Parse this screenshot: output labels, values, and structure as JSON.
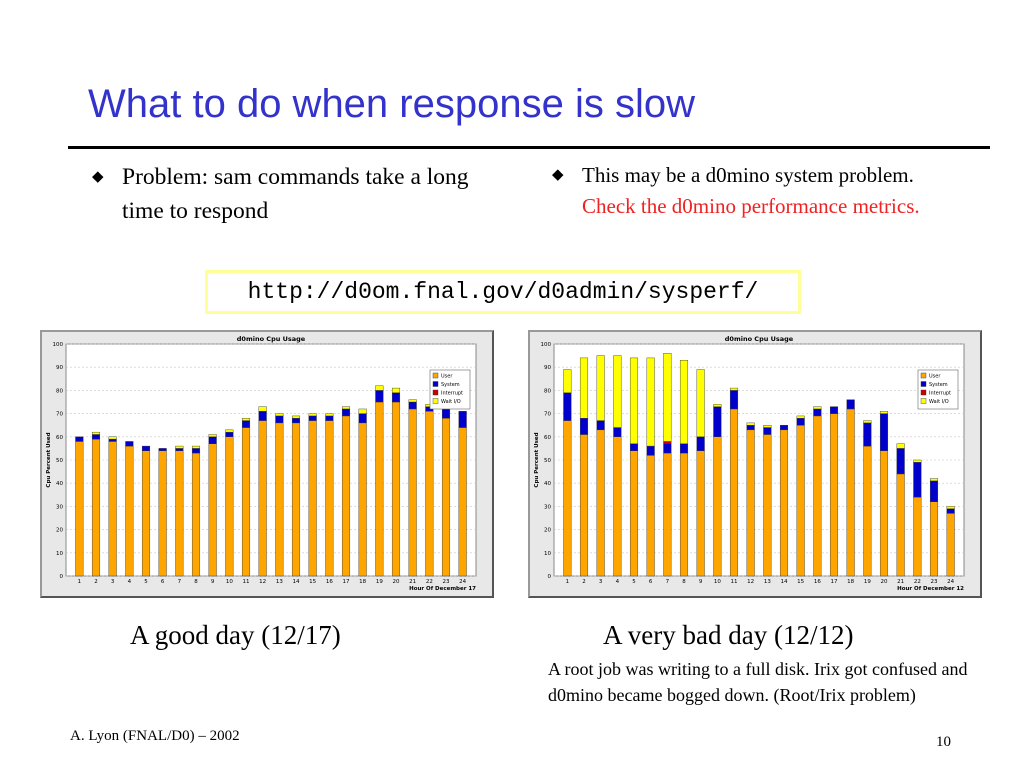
{
  "slide": {
    "title": "What to do when response is slow",
    "bullet_left": "Problem: sam commands take a long time to respond",
    "bullet_right_plain": "This may be a d0mino system problem. ",
    "bullet_right_red": "Check the d0mino performance metrics.",
    "url": "http://d0om.fnal.gov/d0admin/sysperf/",
    "caption_left": "A good day (12/17)",
    "caption_right": "A very bad day (12/12)",
    "note": "A root job was writing to a full disk. Irix got confused and d0mino became bogged down. (Root/Irix problem)",
    "footer_left": "A. Lyon (FNAL/D0) – 2002",
    "page_number": "10",
    "colors": {
      "title": "#3333cc",
      "red_text": "#ee2222",
      "url_box_border": "#ffff99"
    }
  },
  "chart_data": [
    {
      "type": "bar",
      "stacked": true,
      "title": "d0mino Cpu Usage",
      "xlabel": "Hour Of December 17",
      "ylabel": "Cpu Percent Used",
      "ylim": [
        0,
        100
      ],
      "yticks": [
        0,
        10,
        20,
        30,
        40,
        50,
        60,
        70,
        80,
        90,
        100
      ],
      "categories": [
        "1",
        "2",
        "3",
        "4",
        "5",
        "6",
        "7",
        "8",
        "9",
        "10",
        "11",
        "12",
        "13",
        "14",
        "15",
        "16",
        "17",
        "18",
        "19",
        "20",
        "21",
        "22",
        "23",
        "24"
      ],
      "series": [
        {
          "name": "User",
          "color": "#ffa500",
          "values": [
            58,
            59,
            58,
            56,
            54,
            54,
            54,
            53,
            57,
            60,
            64,
            67,
            66,
            66,
            67,
            67,
            69,
            66,
            75,
            75,
            72,
            71,
            68,
            64
          ]
        },
        {
          "name": "System",
          "color": "#0000cc",
          "values": [
            2,
            2,
            1,
            2,
            2,
            1,
            1,
            2,
            3,
            2,
            3,
            4,
            3,
            2,
            2,
            2,
            3,
            4,
            5,
            4,
            3,
            2,
            4,
            7
          ]
        },
        {
          "name": "Interrupt",
          "color": "#cc0000",
          "values": [
            0,
            0,
            0,
            0,
            0,
            0,
            0,
            0,
            0,
            0,
            0,
            0,
            0,
            0,
            0,
            0,
            0,
            0,
            0,
            0,
            0,
            0,
            0,
            0
          ]
        },
        {
          "name": "Wait I/O",
          "color": "#ffff00",
          "values": [
            0,
            1,
            1,
            0,
            0,
            0,
            1,
            1,
            1,
            1,
            1,
            2,
            1,
            1,
            1,
            1,
            1,
            2,
            2,
            2,
            1,
            1,
            1,
            0
          ]
        }
      ],
      "legend": "top-right",
      "grid": true
    },
    {
      "type": "bar",
      "stacked": true,
      "title": "d0mino Cpu Usage",
      "xlabel": "Hour Of December 12",
      "ylabel": "Cpu Percent Used",
      "ylim": [
        0,
        100
      ],
      "yticks": [
        0,
        10,
        20,
        30,
        40,
        50,
        60,
        70,
        80,
        90,
        100
      ],
      "categories": [
        "1",
        "2",
        "3",
        "4",
        "5",
        "6",
        "7",
        "8",
        "9",
        "10",
        "11",
        "12",
        "13",
        "14",
        "15",
        "16",
        "17",
        "18",
        "19",
        "20",
        "21",
        "22",
        "23",
        "24"
      ],
      "series": [
        {
          "name": "User",
          "color": "#ffa500",
          "values": [
            67,
            61,
            63,
            60,
            54,
            52,
            53,
            53,
            54,
            60,
            72,
            63,
            61,
            63,
            65,
            69,
            70,
            72,
            56,
            54,
            44,
            34,
            32,
            27
          ]
        },
        {
          "name": "System",
          "color": "#0000cc",
          "values": [
            12,
            7,
            4,
            4,
            3,
            4,
            4,
            4,
            6,
            13,
            8,
            2,
            3,
            2,
            3,
            3,
            3,
            4,
            10,
            16,
            11,
            15,
            9,
            2
          ]
        },
        {
          "name": "Interrupt",
          "color": "#cc0000",
          "values": [
            0,
            0,
            0,
            0,
            0,
            0,
            1,
            0,
            0,
            0,
            0,
            0,
            0,
            0,
            0,
            0,
            0,
            0,
            0,
            0,
            0,
            0,
            0,
            0
          ]
        },
        {
          "name": "Wait I/O",
          "color": "#ffff00",
          "values": [
            10,
            26,
            28,
            31,
            37,
            38,
            38,
            36,
            29,
            1,
            1,
            1,
            1,
            0,
            1,
            1,
            0,
            0,
            1,
            1,
            2,
            1,
            1,
            1
          ]
        }
      ],
      "legend": "top-right",
      "grid": true
    }
  ]
}
